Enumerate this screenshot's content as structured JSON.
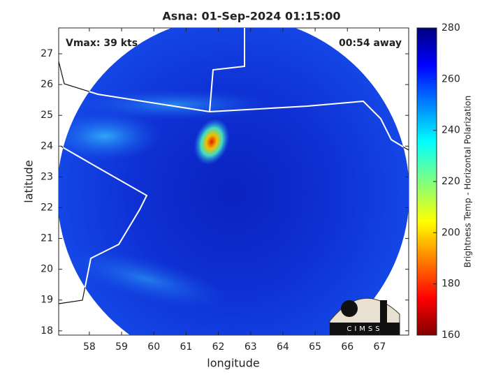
{
  "chart_data": {
    "type": "image-map",
    "title": "Asna: 01-Sep-2024 01:15:00",
    "annotations": [
      "Vmax: 39 kts",
      "00:54 away"
    ],
    "xlabel": "longitude",
    "ylabel": "latitude",
    "xlim": [
      57.05,
      67.9
    ],
    "xticks": [
      58,
      59,
      60,
      61,
      62,
      63,
      64,
      65,
      66,
      67
    ],
    "ylim": [
      17.86,
      27.84
    ],
    "yticks": [
      18,
      19,
      20,
      21,
      22,
      23,
      24,
      25,
      26,
      27
    ],
    "colorbar": {
      "label": "Brightness Temp - Horizontal Polarization",
      "lim": [
        160,
        280
      ],
      "ticks": [
        160,
        180,
        200,
        220,
        240,
        260,
        280
      ]
    },
    "logo": "CIMSS"
  }
}
